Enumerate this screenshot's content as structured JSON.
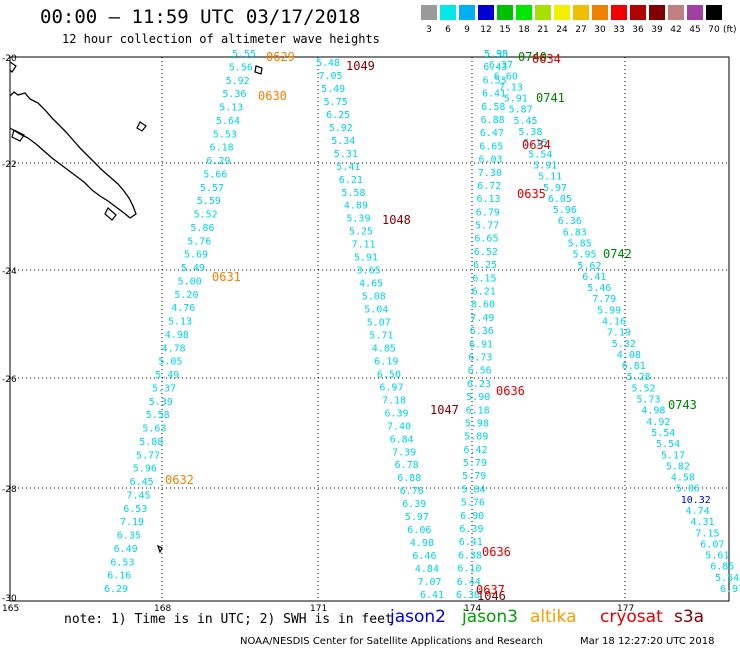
{
  "header": {
    "title": "00:00 – 11:59 UTC 03/17/2018",
    "subtitle": "12 hour collection of altimeter wave heights"
  },
  "legend": {
    "unit": "(ft)",
    "bins": [
      {
        "label": "3",
        "color": "#9a9a9a"
      },
      {
        "label": "6",
        "color": "#00e8e8"
      },
      {
        "label": "9",
        "color": "#00b0f0"
      },
      {
        "label": "12",
        "color": "#0000d0"
      },
      {
        "label": "15",
        "color": "#00c000"
      },
      {
        "label": "18",
        "color": "#00e800"
      },
      {
        "label": "21",
        "color": "#a8e000"
      },
      {
        "label": "24",
        "color": "#f0f000"
      },
      {
        "label": "27",
        "color": "#f0c000"
      },
      {
        "label": "30",
        "color": "#f08000"
      },
      {
        "label": "33",
        "color": "#f00000"
      },
      {
        "label": "36",
        "color": "#b00000"
      },
      {
        "label": "39",
        "color": "#800000"
      },
      {
        "label": "42",
        "color": "#c08080"
      },
      {
        "label": "45",
        "color": "#a040a0"
      },
      {
        "label": "70",
        "color": "#000000"
      }
    ]
  },
  "axes": {
    "lat_labels": [
      "-20",
      "-22",
      "-24",
      "-26",
      "-28",
      "-30"
    ],
    "lon_labels": [
      "165",
      "168",
      "171",
      "174",
      "177"
    ]
  },
  "passes": [
    {
      "id": "t1",
      "values": [
        "5.55",
        "5.56",
        "5.92",
        "5.36",
        "5.13",
        "5.64",
        "5.53",
        "6.18",
        "6.29",
        "5.66",
        "5.57",
        "5.59",
        "5.52",
        "5.86",
        "5.76",
        "5.69",
        "5.49",
        "5.00",
        "5.20",
        "4.76",
        "5.13",
        "4.98",
        "4.78",
        "5.05",
        "5.49",
        "5.37",
        "5.39",
        "5.58",
        "5.63",
        "5.88",
        "5.77",
        "5.96",
        "6.45",
        "7.45",
        "6.53",
        "7.19",
        "6.35",
        "6.49",
        "6.53",
        "6.16",
        "6.29"
      ]
    },
    {
      "id": "t2",
      "values": [
        "5.48",
        "7.05",
        "5.49",
        "5.75",
        "6.25",
        "5.92",
        "5.34",
        "5.31",
        "5.41",
        "6.21",
        "5.58",
        "4.89",
        "5.39",
        "5.25",
        "7.11",
        "5.91",
        "3.65",
        "4.65",
        "5.08",
        "5.04",
        "5.07",
        "5.71",
        "4.85",
        "6.19",
        "6.50",
        "6.97",
        "7.18",
        "6.39",
        "7.40",
        "6.84",
        "7.39",
        "6.78",
        "6.88",
        "6.76",
        "6.39",
        "5.97",
        "6.06",
        "4.98",
        "6.46",
        "4.84",
        "7.07",
        "6.41"
      ]
    },
    {
      "id": "t3",
      "values": [
        "5.38",
        "6.43",
        "6.53",
        "6.41",
        "6.58",
        "6.88",
        "6.47",
        "6.65",
        "6.03",
        "7.30",
        "6.72",
        "6.13",
        "6.79",
        "5.77",
        "6.65",
        "6.52",
        "6.25",
        "6.15",
        "6.21",
        "8.60",
        "7.49",
        "6.36",
        "6.91",
        "6.73",
        "6.56",
        "6.23",
        "5.90",
        "6.18",
        "5.98",
        "5.89",
        "6.42",
        "5.79",
        "5.79",
        "5.84",
        "5.76",
        "6.90",
        "6.39",
        "6.41",
        "6.38",
        "6.10",
        "6.44",
        "6.38"
      ]
    },
    {
      "id": "t4",
      "values": [
        "5.93",
        "6.37",
        "6.60",
        "7.13",
        "5.91",
        "5.87",
        "5.45",
        "5.38",
        "5.15",
        "5.54",
        "5.91",
        "5.11",
        "5.97",
        "6.05",
        "5.96",
        "6.36",
        "6.83",
        "5.85",
        "5.95",
        "5.62",
        "6.41",
        "5.46",
        "7.79",
        "5.99",
        "4.16",
        "7.19",
        "5.32",
        "4.08",
        "6.81",
        "5.28",
        "5.52",
        "5.73",
        "4.98",
        "4.92",
        "5.54",
        "5.54",
        "5.17",
        "5.82",
        "4.58",
        "5.06",
        "10.32",
        "4.74",
        "4.31",
        "7.15",
        "6.07",
        "5.61",
        "6.85",
        "5.54",
        "6.97"
      ]
    }
  ],
  "time_labels": [
    {
      "text": "0629",
      "color": "#f08000"
    },
    {
      "text": "0630",
      "color": "#f08000"
    },
    {
      "text": "0631",
      "color": "#f08000"
    },
    {
      "text": "0632",
      "color": "#f08000"
    },
    {
      "text": "1049",
      "color": "#800000"
    },
    {
      "text": "1048",
      "color": "#800000"
    },
    {
      "text": "1047",
      "color": "#800000"
    },
    {
      "text": "1046",
      "color": "#800000"
    },
    {
      "text": "0740",
      "color": "#008000"
    },
    {
      "text": "0741",
      "color": "#008000"
    },
    {
      "text": "0742",
      "color": "#008000"
    },
    {
      "text": "0743",
      "color": "#008000"
    },
    {
      "text": "0634",
      "color": "#e00000"
    },
    {
      "text": "0634",
      "color": "#e00000"
    },
    {
      "text": "0635",
      "color": "#e00000"
    },
    {
      "text": "0636",
      "color": "#e00000"
    },
    {
      "text": "0636",
      "color": "#e00000"
    },
    {
      "text": "0637",
      "color": "#e00000"
    }
  ],
  "footer": {
    "note": "note: 1) Time is in UTC; 2) SWH is in feet",
    "satellites": [
      {
        "name": "jason2",
        "color": "#0000d0"
      },
      {
        "name": "jason3",
        "color": "#00a000"
      },
      {
        "name": "altika",
        "color": "#f0a000"
      },
      {
        "name": "cryosat",
        "color": "#e00000"
      },
      {
        "name": "s3a",
        "color": "#800000"
      }
    ],
    "credit": "NOAA/NESDIS Center for Satellite Applications and Research",
    "timestamp": "Mar 18 12:27:20 UTC 2018"
  }
}
